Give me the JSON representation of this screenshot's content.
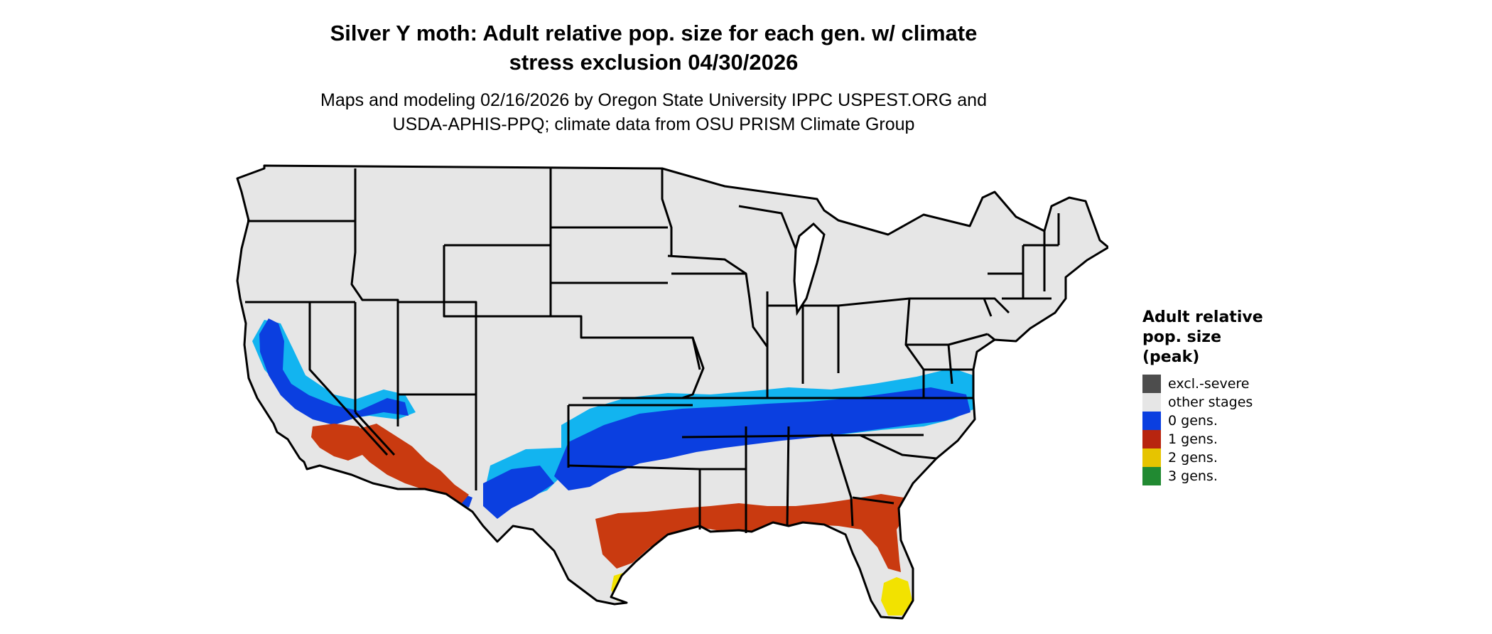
{
  "title_line1": "Silver Y moth: Adult relative pop. size for each gen. w/ climate",
  "title_line2": "stress exclusion 04/30/2026",
  "subtitle_line1": "Maps and modeling 02/16/2026 by Oregon State University IPPC USPEST.ORG and",
  "subtitle_line2": "USDA-APHIS-PPQ; climate data from OSU PRISM Climate Group",
  "legend": {
    "title_line1": "Adult relative",
    "title_line2": "pop. size",
    "title_line3": "(peak)",
    "items": [
      {
        "label": "excl.-severe",
        "color": "#4d4d4d"
      },
      {
        "label": "other stages",
        "color": "#e6e6e6"
      },
      {
        "label": "0 gens.",
        "color": "#0b3fe0"
      },
      {
        "label": "1 gens.",
        "color": "#b8250f"
      },
      {
        "label": "2 gens.",
        "color": "#e6c400"
      },
      {
        "label": "3 gens.",
        "color": "#218a32"
      }
    ]
  },
  "map_colors": {
    "land": "#e6e6e6",
    "border": "#000000",
    "light_blue": "#12b4f0",
    "blue": "#0b3fe0",
    "red": "#c93a10",
    "yellow": "#f2e200"
  }
}
